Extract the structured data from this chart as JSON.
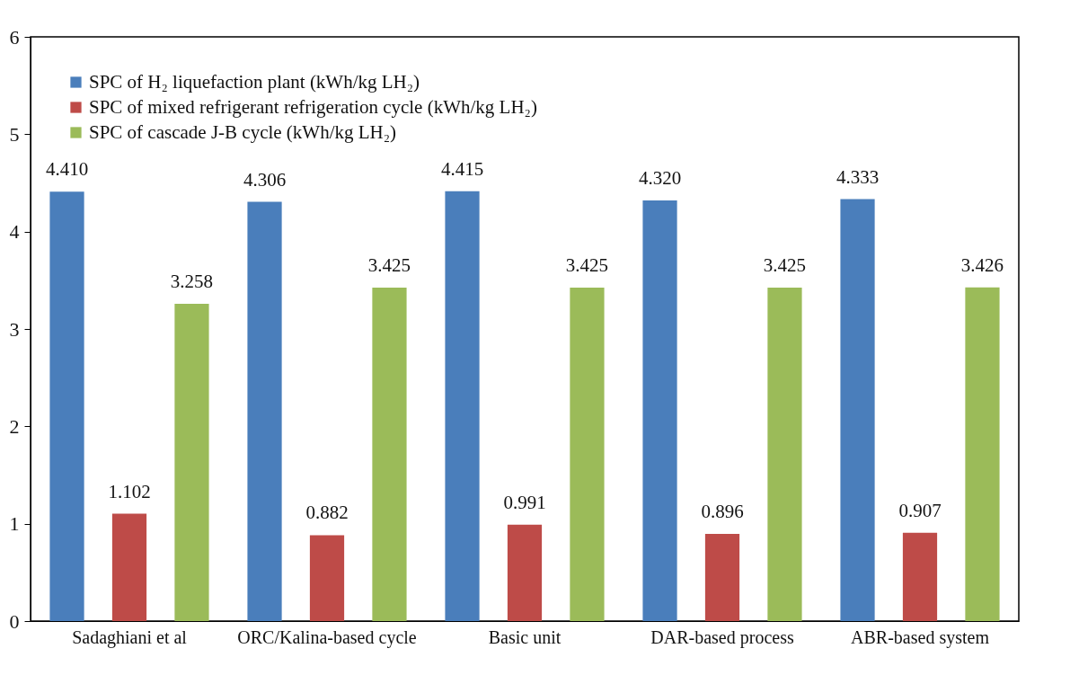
{
  "chart_data": {
    "type": "bar",
    "categories": [
      "Sadaghiani et al",
      "ORC/Kalina-based cycle",
      "Basic unit",
      "DAR-based process",
      "ABR-based system"
    ],
    "series": [
      {
        "name": "SPC of H₂ liquefaction plant (kWh/kg LH₂)",
        "color": "#4a7ebb",
        "values": [
          4.41,
          4.306,
          4.415,
          4.32,
          4.333
        ],
        "value_labels": [
          "4.410",
          "4.306",
          "4.415",
          "4.320",
          "4.333"
        ]
      },
      {
        "name": "SPC of mixed refrigerant refrigeration cycle (kWh/kg LH₂)",
        "color": "#be4b48",
        "values": [
          1.102,
          0.882,
          0.991,
          0.896,
          0.907
        ],
        "value_labels": [
          "1.102",
          "0.882",
          "0.991",
          "0.896",
          "0.907"
        ]
      },
      {
        "name": "SPC of cascade J-B cycle (kWh/kg LH₂)",
        "color": "#9bbb59",
        "values": [
          3.258,
          3.425,
          3.425,
          3.425,
          3.426
        ],
        "value_labels": [
          "3.258",
          "3.425",
          "3.425",
          "3.425",
          "3.426"
        ]
      }
    ],
    "ylim": [
      0,
      6
    ],
    "yticks": [
      0,
      1,
      2,
      3,
      4,
      5,
      6
    ],
    "grid": false,
    "legend": "top left"
  }
}
